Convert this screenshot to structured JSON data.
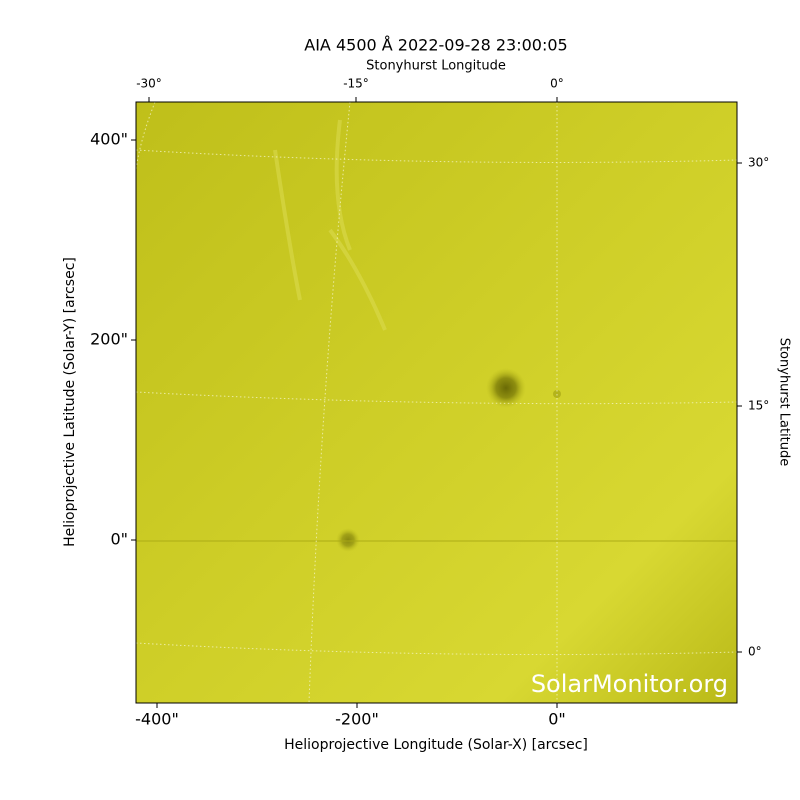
{
  "chart_data": {
    "type": "image",
    "title": "AIA 4500 Å 2022-09-28 23:00:05",
    "xlabel": "Helioprojective Longitude (Solar-X) [arcsec]",
    "ylabel": "Helioprojective Latitude (Solar-Y) [arcsec]",
    "x2label": "Stonyhurst Longitude",
    "y2label": "Stonyhurst Latitude",
    "xlim": [
      -421,
      180
    ],
    "ylim": [
      -163,
      438
    ],
    "xticks": [
      {
        "value": -400,
        "label": "-400\""
      },
      {
        "value": -200,
        "label": "-200\""
      },
      {
        "value": 0,
        "label": "0\""
      }
    ],
    "yticks": [
      {
        "value": 0,
        "label": "0\""
      },
      {
        "value": 200,
        "label": "200\""
      },
      {
        "value": 400,
        "label": "400\""
      }
    ],
    "x2ticks": [
      {
        "value": -30,
        "label": "-30°"
      },
      {
        "value": -15,
        "label": "-15°"
      },
      {
        "value": 0,
        "label": "0°"
      }
    ],
    "y2ticks": [
      {
        "value": 0,
        "label": "0°"
      },
      {
        "value": 15,
        "label": "15°"
      },
      {
        "value": 30,
        "label": "30°"
      }
    ],
    "color": "#cdcd22",
    "watermark": "SolarMonitor.org"
  }
}
